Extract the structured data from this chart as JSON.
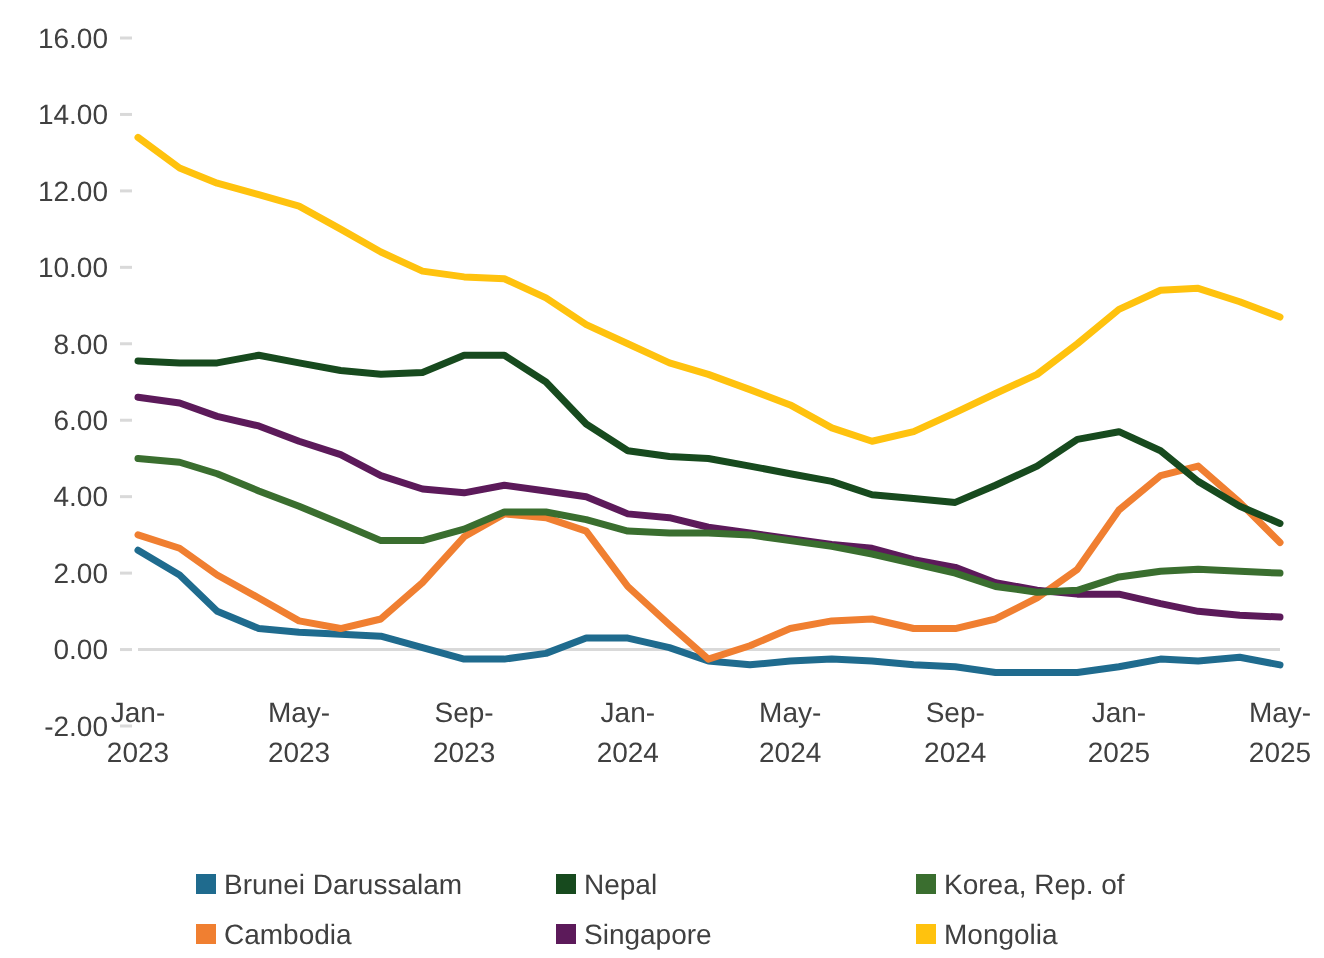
{
  "chart_data": {
    "type": "line",
    "x": [
      "2023-01",
      "2023-02",
      "2023-03",
      "2023-04",
      "2023-05",
      "2023-06",
      "2023-07",
      "2023-08",
      "2023-09",
      "2023-10",
      "2023-11",
      "2023-12",
      "2024-01",
      "2024-02",
      "2024-03",
      "2024-04",
      "2024-05",
      "2024-06",
      "2024-07",
      "2024-08",
      "2024-09",
      "2024-10",
      "2024-11",
      "2024-12",
      "2025-01",
      "2025-02",
      "2025-03",
      "2025-04",
      "2025-05"
    ],
    "xlim": [
      "2023-01",
      "2025-05"
    ],
    "xticks": [
      {
        "value": "2023-01",
        "label": "Jan-2023"
      },
      {
        "value": "2023-05",
        "label": "May-2023"
      },
      {
        "value": "2023-09",
        "label": "Sep-2023"
      },
      {
        "value": "2024-01",
        "label": "Jan-2024"
      },
      {
        "value": "2024-05",
        "label": "May-2024"
      },
      {
        "value": "2024-09",
        "label": "Sep-2024"
      },
      {
        "value": "2025-01",
        "label": "Jan-2025"
      },
      {
        "value": "2025-05",
        "label": "May-2025"
      }
    ],
    "ylim": [
      -2,
      16
    ],
    "yticks": [
      {
        "value": -2,
        "label": "-2.00"
      },
      {
        "value": 0,
        "label": "0.00"
      },
      {
        "value": 2,
        "label": "2.00"
      },
      {
        "value": 4,
        "label": "4.00"
      },
      {
        "value": 6,
        "label": "6.00"
      },
      {
        "value": 8,
        "label": "8.00"
      },
      {
        "value": 10,
        "label": "10.00"
      },
      {
        "value": 12,
        "label": "12.00"
      },
      {
        "value": 14,
        "label": "14.00"
      },
      {
        "value": 16,
        "label": "16.00"
      }
    ],
    "grid": false,
    "legend": "bottom",
    "marker": "none",
    "line_style": "solid",
    "series": [
      {
        "name": "Brunei Darussalam",
        "color": "#1f6b8e",
        "values": [
          2.6,
          1.95,
          1.0,
          0.55,
          0.45,
          0.4,
          0.35,
          0.05,
          -0.25,
          -0.25,
          -0.1,
          0.3,
          0.3,
          0.05,
          -0.3,
          -0.4,
          -0.3,
          -0.25,
          -0.3,
          -0.4,
          -0.45,
          -0.6,
          -0.6,
          -0.6,
          -0.45,
          -0.25,
          -0.3,
          -0.2,
          -0.4
        ]
      },
      {
        "name": "Cambodia",
        "color": "#f07f31",
        "values": [
          3.0,
          2.65,
          1.95,
          1.35,
          0.75,
          0.55,
          0.8,
          1.75,
          2.95,
          3.55,
          3.45,
          3.1,
          1.65,
          0.65,
          -0.25,
          0.1,
          0.55,
          0.75,
          0.8,
          0.55,
          0.55,
          0.8,
          1.35,
          2.1,
          3.65,
          4.55,
          4.8,
          3.85,
          2.8
        ]
      },
      {
        "name": "Nepal",
        "color": "#174a1e",
        "values": [
          7.55,
          7.5,
          7.5,
          7.7,
          7.5,
          7.3,
          7.2,
          7.25,
          7.7,
          7.7,
          7.0,
          5.9,
          5.2,
          5.05,
          5.0,
          4.8,
          4.6,
          4.4,
          4.05,
          3.95,
          3.85,
          4.3,
          4.8,
          5.5,
          5.7,
          5.2,
          4.4,
          3.75,
          3.3
        ]
      },
      {
        "name": "Singapore",
        "color": "#5c1a5a",
        "values": [
          6.6,
          6.45,
          6.1,
          5.85,
          5.45,
          5.1,
          4.55,
          4.2,
          4.1,
          4.3,
          4.15,
          4.0,
          3.55,
          3.45,
          3.2,
          3.05,
          2.9,
          2.75,
          2.65,
          2.35,
          2.15,
          1.75,
          1.55,
          1.45,
          1.45,
          1.2,
          1.0,
          0.9,
          0.85
        ]
      },
      {
        "name": "Korea, Rep. of",
        "color": "#3a6e2f",
        "values": [
          5.0,
          4.9,
          4.6,
          4.15,
          3.75,
          3.3,
          2.85,
          2.85,
          3.15,
          3.6,
          3.6,
          3.4,
          3.1,
          3.05,
          3.05,
          3.0,
          2.85,
          2.7,
          2.5,
          2.25,
          2.0,
          1.65,
          1.5,
          1.55,
          1.9,
          2.05,
          2.1,
          2.05,
          2.0
        ]
      },
      {
        "name": "Mongolia",
        "color": "#ffc20e",
        "values": [
          13.4,
          12.6,
          12.2,
          11.9,
          11.6,
          11.0,
          10.4,
          9.9,
          9.75,
          9.7,
          9.2,
          8.5,
          8.0,
          7.5,
          7.2,
          6.8,
          6.4,
          5.8,
          5.45,
          5.7,
          6.2,
          6.7,
          7.2,
          8.0,
          8.9,
          9.4,
          9.45,
          9.1,
          8.7
        ]
      }
    ]
  }
}
